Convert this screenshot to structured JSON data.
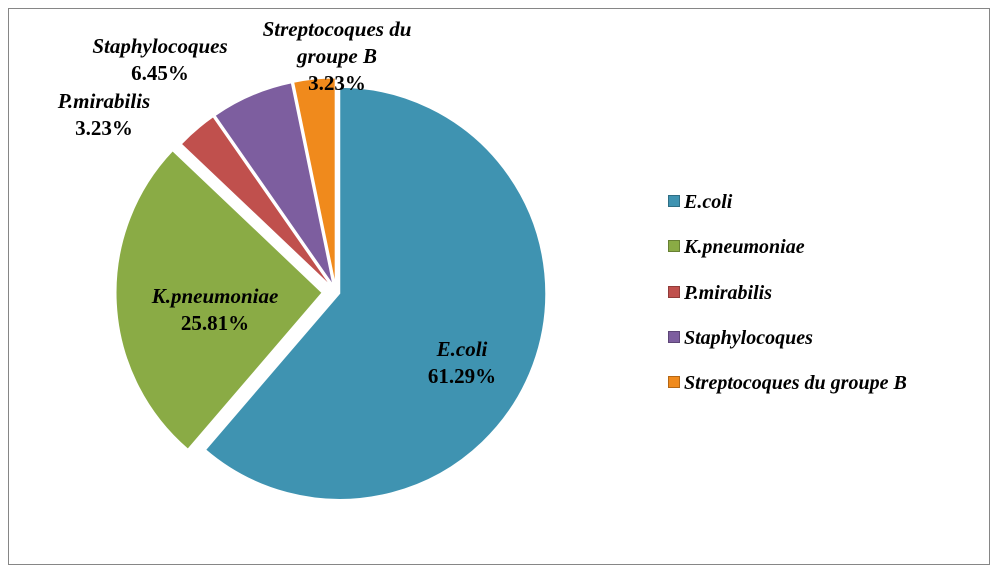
{
  "chart_data": {
    "type": "pie",
    "categories": [
      "E.coli",
      "K.pneumoniae",
      "P.mirabilis",
      "Staphylocoques",
      "Streptocoques du groupe B"
    ],
    "values": [
      61.29,
      25.81,
      3.23,
      6.45,
      3.23
    ],
    "value_labels": [
      "61.29%",
      "25.81%",
      "3.23%",
      "6.45%",
      "3.23%"
    ],
    "colors": [
      "#3f93b1",
      "#8aab45",
      "#c0504d",
      "#7d5e9f",
      "#f08a1c"
    ],
    "legend": "right"
  }
}
